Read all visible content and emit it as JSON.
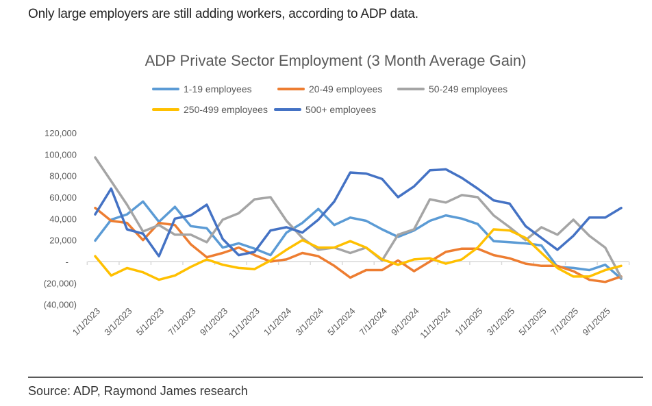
{
  "headline": "Only large employers are still adding workers, according to ADP data.",
  "source": "Source: ADP, Raymond James research",
  "chart_data": {
    "type": "line",
    "title": "ADP Private Sector Employment (3 Month Average Gain)",
    "xlabel": "",
    "ylabel": "",
    "ylim": [
      -40000,
      120000
    ],
    "yticks": [
      120000,
      100000,
      80000,
      60000,
      40000,
      20000,
      0,
      -20000,
      -40000
    ],
    "ytick_labels": [
      "120,000",
      "100,000",
      "80,000",
      "60,000",
      "40,000",
      "20,000",
      "-",
      "(20,000)",
      "(40,000)"
    ],
    "xtick_labels": [
      "1/1/2023",
      "3/1/2023",
      "5/1/2023",
      "7/1/2023",
      "9/1/2023",
      "11/1/2023",
      "1/1/2024",
      "3/1/2024",
      "5/1/2024",
      "7/1/2024",
      "9/1/2024",
      "11/1/2024",
      "1/1/2025",
      "3/1/2025",
      "5/1/2025",
      "7/1/2025",
      "9/1/2025"
    ],
    "x": [
      "1/1/2023",
      "2/1/2023",
      "3/1/2023",
      "4/1/2023",
      "5/1/2023",
      "6/1/2023",
      "7/1/2023",
      "8/1/2023",
      "9/1/2023",
      "10/1/2023",
      "11/1/2023",
      "12/1/2023",
      "1/1/2024",
      "2/1/2024",
      "3/1/2024",
      "4/1/2024",
      "5/1/2024",
      "6/1/2024",
      "7/1/2024",
      "8/1/2024",
      "9/1/2024",
      "10/1/2024",
      "11/1/2024",
      "12/1/2024",
      "1/1/2025",
      "2/1/2025",
      "3/1/2025",
      "4/1/2025",
      "5/1/2025",
      "6/1/2025",
      "7/1/2025",
      "8/1/2025",
      "9/1/2025",
      "10/1/2025"
    ],
    "grid": false,
    "legend_position": "top-center",
    "series": [
      {
        "name": "1-19 employees",
        "color": "#5B9BD5",
        "values": [
          19500,
          39000,
          44000,
          56000,
          37000,
          51000,
          33000,
          31000,
          13000,
          17000,
          12000,
          6000,
          27000,
          36000,
          49000,
          34000,
          41000,
          38000,
          30000,
          23000,
          29000,
          38000,
          43000,
          40000,
          35000,
          19000,
          18000,
          17000,
          15000,
          -5000,
          -6000,
          -8000,
          -3000,
          -16000
        ]
      },
      {
        "name": "20-49 employees",
        "color": "#ED7D31",
        "values": [
          50000,
          38000,
          36000,
          20000,
          36000,
          34000,
          16000,
          4000,
          8000,
          13000,
          6000,
          0,
          2000,
          8000,
          5000,
          -4000,
          -15000,
          -8000,
          -8000,
          1000,
          -9000,
          0,
          9000,
          12000,
          12000,
          6000,
          3000,
          -2000,
          -4000,
          -4000,
          -9000,
          -17000,
          -19000,
          -14000
        ]
      },
      {
        "name": "50-249 employees",
        "color": "#A5A5A5",
        "values": [
          97000,
          75000,
          53000,
          28000,
          34000,
          25000,
          25000,
          18000,
          39000,
          45000,
          58000,
          60000,
          38000,
          22000,
          11000,
          13000,
          8000,
          13000,
          1000,
          25000,
          30000,
          58000,
          55000,
          62000,
          60000,
          43000,
          32000,
          20000,
          32000,
          25000,
          39000,
          24000,
          13000,
          -15000
        ]
      },
      {
        "name": "250-499 employees",
        "color": "#FFC000",
        "values": [
          5000,
          -13000,
          -6000,
          -10000,
          -17000,
          -13000,
          -5000,
          2000,
          -3000,
          -6000,
          -7000,
          1000,
          11000,
          20000,
          13000,
          13000,
          19000,
          13000,
          2000,
          -3000,
          2000,
          3000,
          -2000,
          2000,
          13000,
          30000,
          29000,
          22000,
          8000,
          -6000,
          -14000,
          -14000,
          -8000,
          -4000
        ]
      },
      {
        "name": "500+ employees",
        "color": "#4472C4",
        "values": [
          44000,
          68000,
          30000,
          26000,
          5000,
          40000,
          43000,
          53000,
          21000,
          6000,
          9000,
          29000,
          32000,
          27000,
          39000,
          56000,
          83000,
          82000,
          77000,
          60000,
          70000,
          85000,
          86000,
          78000,
          68000,
          57000,
          54000,
          33000,
          22000,
          11000,
          24000,
          41000,
          41000,
          50000
        ]
      }
    ]
  }
}
